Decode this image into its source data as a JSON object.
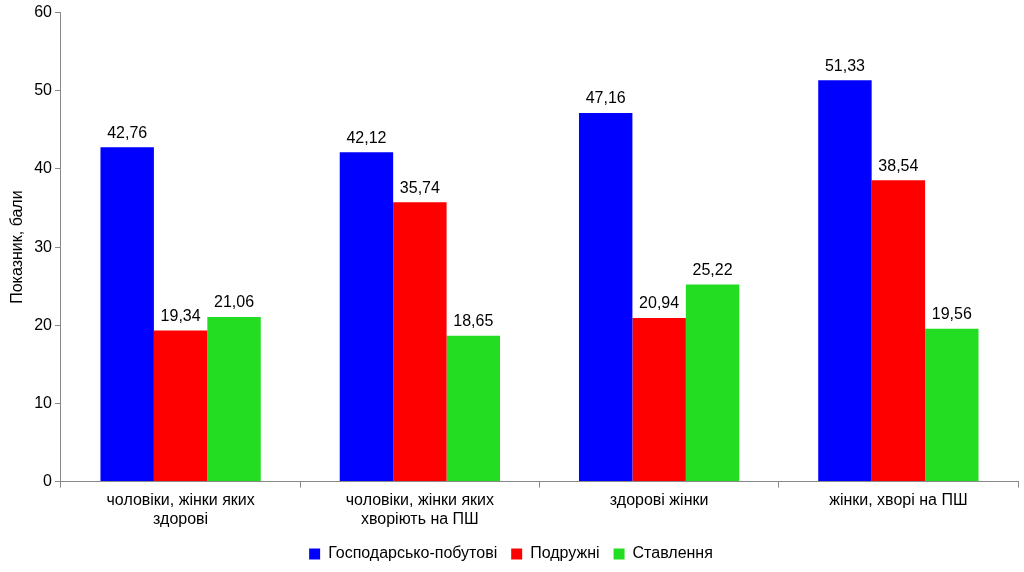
{
  "chart_data": {
    "type": "bar",
    "ylabel": "Показник, бали",
    "categories": [
      "чоловіки, жінки яких здорові",
      "чоловіки, жінки яких хворіють на ПШ",
      "здорові жінки",
      "жінки, хворі на ПШ"
    ],
    "series": [
      {
        "name": "Господарсько-побутові",
        "color": "#0000ff",
        "values": [
          42.76,
          42.12,
          47.16,
          51.33
        ],
        "value_labels": [
          "42,76",
          "42,12",
          "47,16",
          "51,33"
        ]
      },
      {
        "name": "Подружні",
        "color": "#ff0000",
        "values": [
          19.34,
          35.74,
          20.94,
          38.54
        ],
        "value_labels": [
          "19,34",
          "35,74",
          "20,94",
          "38,54"
        ]
      },
      {
        "name": "Ставлення",
        "color": "#22dd22",
        "values": [
          21.06,
          18.65,
          25.22,
          19.56
        ],
        "value_labels": [
          "21,06",
          "18,65",
          "25,22",
          "19,56"
        ]
      }
    ],
    "ylim": [
      0,
      60
    ],
    "yticks": [
      0,
      10,
      20,
      30,
      40,
      50,
      60
    ],
    "grid": false,
    "legend": "bottom"
  }
}
